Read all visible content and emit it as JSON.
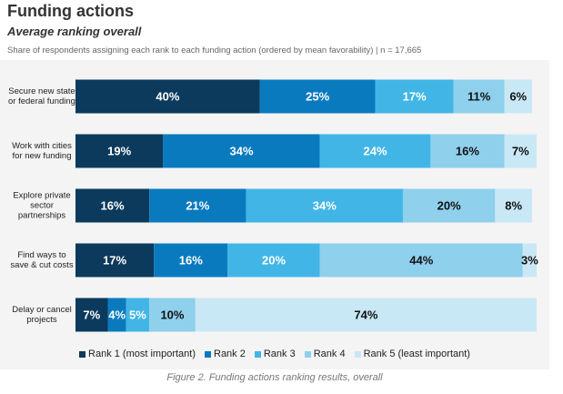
{
  "chart_data": {
    "type": "stacked-bar-horizontal",
    "title": "Funding actions",
    "subtitle": "Average ranking overall",
    "note": "Share of respondents assigning each rank to each funding action (ordered by mean favorability) | n = 17,665",
    "caption": "Figure 2. Funding actions ranking results, overall",
    "categories": [
      "Secure new state or federal funding",
      "Work with cities for new funding",
      "Explore private sector partnerships",
      "Find ways to save & cut costs",
      "Delay or cancel projects"
    ],
    "xlim": [
      0,
      100
    ],
    "legend": "bottom",
    "series": [
      {
        "name": "Rank 1 (most important)",
        "color": "#0b3a5c",
        "values": [
          40,
          19,
          16,
          17,
          7
        ],
        "value_labels": [
          "40%",
          "19%",
          "16%",
          "17%",
          "7%"
        ]
      },
      {
        "name": "Rank 2",
        "color": "#0a7abf",
        "values": [
          25,
          34,
          21,
          16,
          4
        ],
        "value_labels": [
          "25%",
          "34%",
          "21%",
          "16%",
          "4%"
        ]
      },
      {
        "name": "Rank 3",
        "color": "#41b6e6",
        "values": [
          17,
          24,
          34,
          20,
          5
        ],
        "value_labels": [
          "17%",
          "24%",
          "34%",
          "20%",
          "5%"
        ]
      },
      {
        "name": "Rank 4",
        "color": "#8fd0ec",
        "values": [
          11,
          16,
          20,
          44,
          10
        ],
        "value_labels": [
          "11%",
          "16%",
          "20%",
          "44%",
          "10%"
        ]
      },
      {
        "name": "Rank 5 (least important)",
        "color": "#c9e8f5",
        "values": [
          6,
          7,
          8,
          3,
          74
        ],
        "value_labels": [
          "6%",
          "7%",
          "8%",
          "3%",
          "74%"
        ]
      }
    ]
  }
}
